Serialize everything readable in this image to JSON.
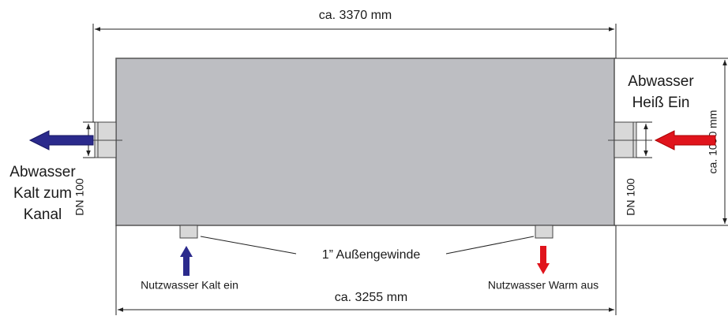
{
  "dimensions": {
    "overall_length": "ca. 3370 mm",
    "height": "ca. 1090 mm",
    "tank_length": "ca. 3255 mm"
  },
  "inlet_hot": {
    "lines": [
      "Abwasser",
      "Heiß Ein"
    ],
    "size": "DN 100"
  },
  "outlet_cold": {
    "lines": [
      "Abwasser",
      "Kalt zum",
      "Kanal"
    ],
    "size": "DN 100"
  },
  "thread_label": "1” Außengewinde",
  "service_in": "Nutzwasser Kalt ein",
  "service_out": "Nutzwasser Warm aus"
}
